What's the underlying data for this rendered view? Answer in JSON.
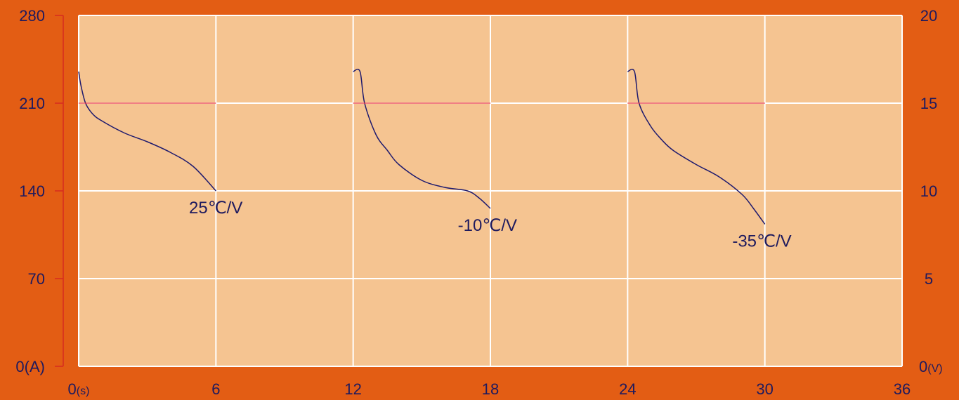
{
  "chart_data": {
    "type": "line",
    "title": "",
    "colors": {
      "background": "#e35d14",
      "plot_area": "#f5c491",
      "grid": "#ffffff",
      "voltage_line": "#1e1a6e",
      "current_line": "#e8333a",
      "left_axis": "#d62b1f",
      "text": "#1e1a5e"
    },
    "grid": true,
    "x_axis": {
      "range": [
        0,
        36
      ],
      "ticks": [
        0,
        6,
        12,
        18,
        24,
        30,
        36
      ],
      "tick_labels": [
        "0",
        "6",
        "12",
        "18",
        "24",
        "30",
        "36"
      ],
      "unit_label": "(s)"
    },
    "y_left": {
      "range": [
        0,
        280
      ],
      "ticks": [
        0,
        70,
        140,
        210,
        280
      ],
      "tick_labels": [
        "0",
        "70",
        "140",
        "210",
        "280"
      ],
      "unit_label": "(A)"
    },
    "y_right": {
      "range": [
        0,
        20
      ],
      "ticks": [
        0,
        5,
        10,
        15,
        20
      ],
      "tick_labels": [
        "0",
        "5",
        "10",
        "15",
        "20"
      ],
      "unit_label": "(V)"
    },
    "series": [
      {
        "name": "25℃/V",
        "axis": "right",
        "x": [
          0,
          0.1,
          0.3,
          0.6,
          1.0,
          2.0,
          3.0,
          4.0,
          5.0,
          6.0
        ],
        "y": [
          16.8,
          16.0,
          15.0,
          14.4,
          14.0,
          13.3,
          12.8,
          12.2,
          11.4,
          10.0
        ]
      },
      {
        "name": "-10℃/V",
        "axis": "right",
        "x": [
          12.0,
          12.3,
          12.5,
          13.0,
          13.5,
          14.0,
          15.0,
          16.0,
          17.0,
          17.5,
          18.0
        ],
        "y": [
          16.8,
          16.8,
          15.0,
          13.2,
          12.3,
          11.5,
          10.6,
          10.2,
          10.0,
          9.6,
          9.0
        ]
      },
      {
        "name": "-35℃/V",
        "axis": "right",
        "x": [
          24.0,
          24.3,
          24.5,
          25.0,
          25.5,
          26.0,
          27.0,
          28.0,
          29.0,
          29.5,
          30.0
        ],
        "y": [
          16.8,
          16.8,
          15.0,
          13.7,
          12.9,
          12.3,
          11.5,
          10.8,
          9.8,
          9.0,
          8.1
        ]
      },
      {
        "name": "",
        "axis": "left",
        "segments": [
          {
            "x": [
              0,
              6
            ],
            "y": [
              210,
              210
            ]
          },
          {
            "x": [
              12,
              18
            ],
            "y": [
              210,
              210
            ]
          },
          {
            "x": [
              24,
              30
            ],
            "y": [
              210,
              210
            ]
          }
        ]
      }
    ]
  }
}
